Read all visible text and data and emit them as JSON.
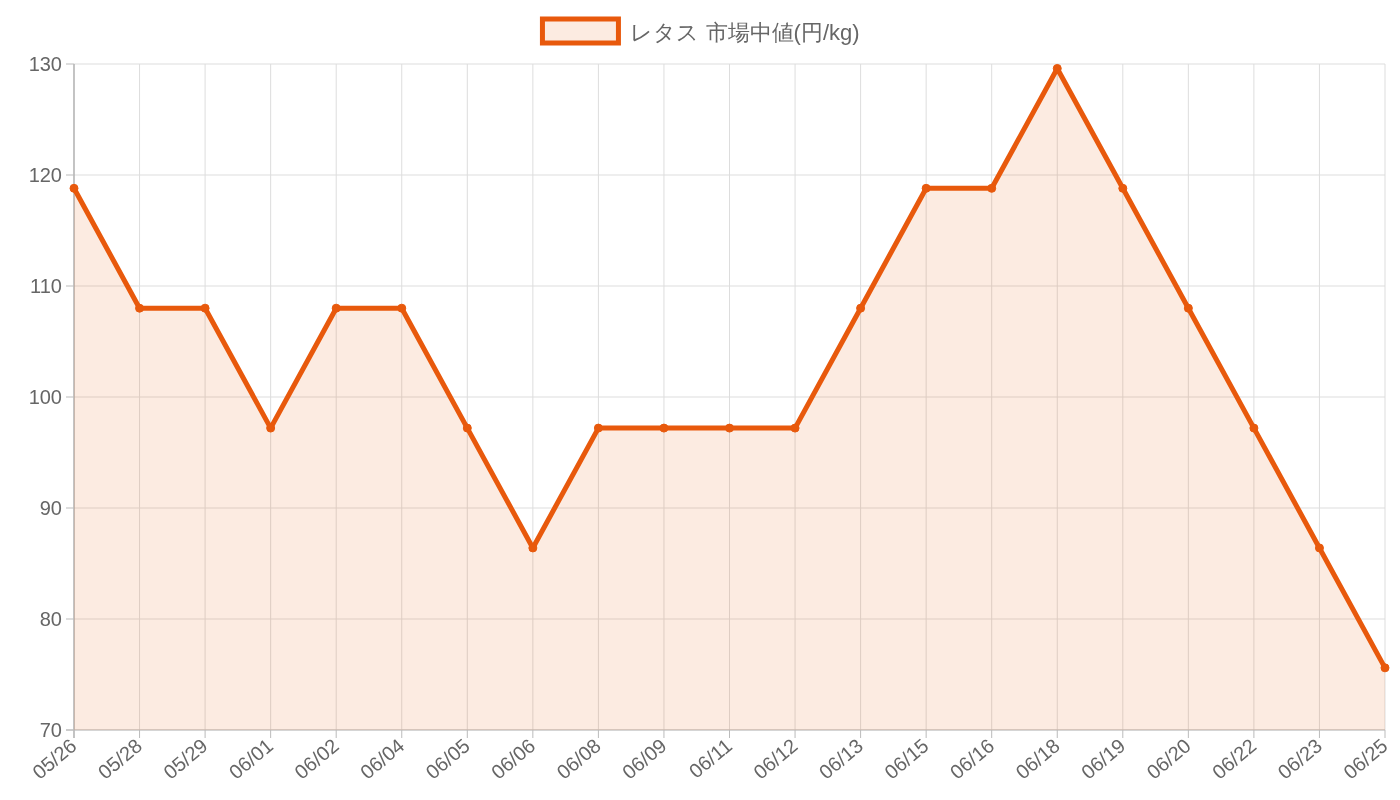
{
  "chart_data": {
    "type": "area",
    "categories": [
      "05/26",
      "05/28",
      "05/29",
      "06/01",
      "06/02",
      "06/04",
      "06/05",
      "06/06",
      "06/08",
      "06/09",
      "06/11",
      "06/12",
      "06/13",
      "06/15",
      "06/16",
      "06/18",
      "06/19",
      "06/20",
      "06/22",
      "06/23",
      "06/25"
    ],
    "series": [
      {
        "name": "レタス 市場中値(円/kg)",
        "color": "#e8590c",
        "values": [
          118.8,
          108,
          108,
          97.2,
          108,
          108,
          97.2,
          86.4,
          97.2,
          97.2,
          97.2,
          97.2,
          108,
          118.8,
          118.8,
          129.6,
          118.8,
          108,
          97.2,
          86.4,
          75.6
        ]
      }
    ],
    "ylim": [
      70,
      130
    ],
    "yticks": [
      70,
      80,
      90,
      100,
      110,
      120,
      130
    ],
    "grid": true,
    "legend": "top",
    "marker": "circle",
    "line_style": "solid"
  }
}
